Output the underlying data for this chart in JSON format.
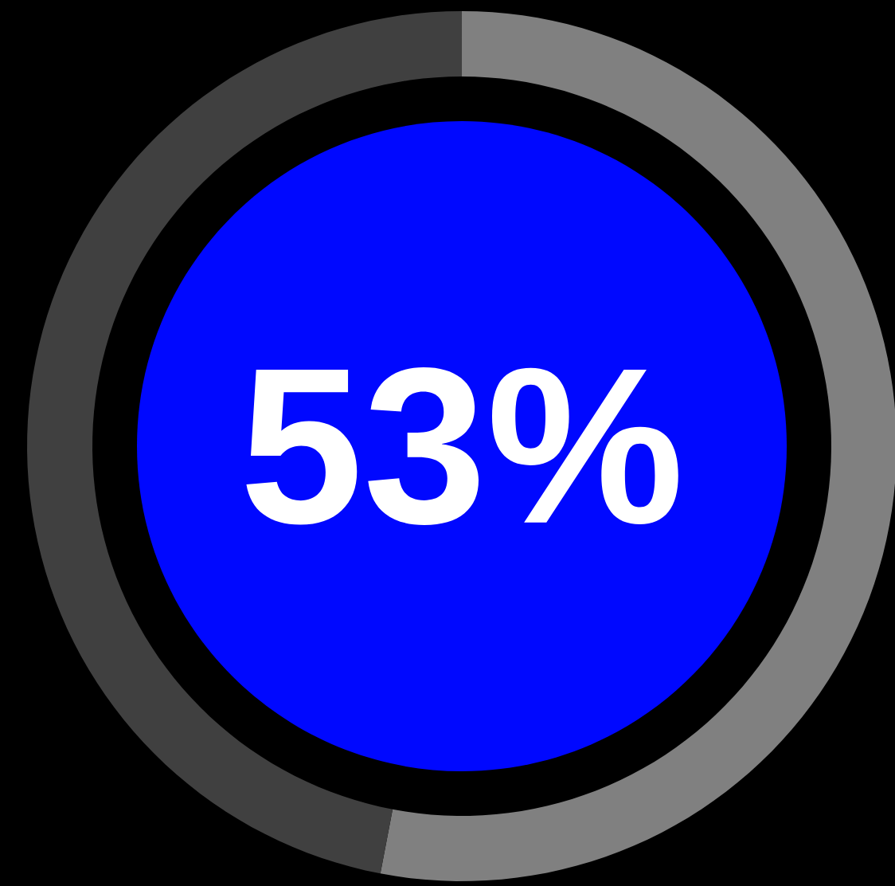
{
  "chart_data": {
    "type": "donut",
    "categories": [
      null,
      null
    ],
    "values": [
      53,
      47
    ],
    "colors": [
      "#808080",
      "#404040"
    ],
    "value_labels": [
      "53%",
      null
    ]
  }
}
